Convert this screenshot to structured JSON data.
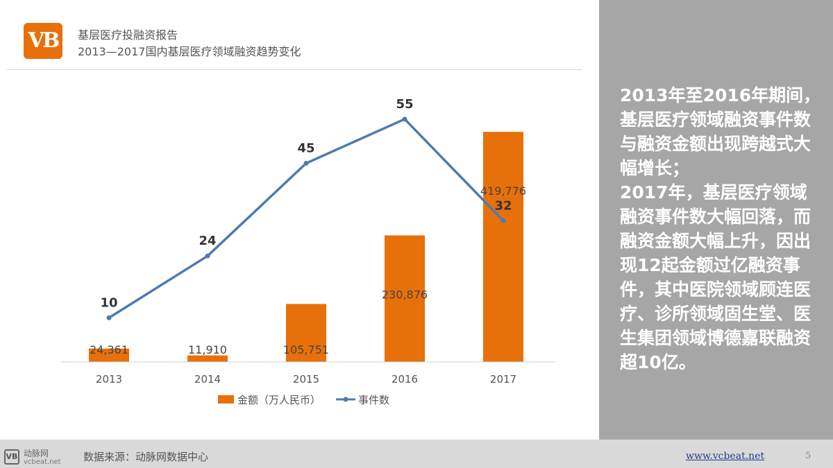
{
  "header": {
    "logo_text": "VB",
    "title": "基层医疗投融资报告",
    "subtitle": "2013—2017国内基层医疗领域融资趋势变化"
  },
  "chart_data": {
    "type": "bar",
    "categories": [
      "2013",
      "2014",
      "2015",
      "2016",
      "2017"
    ],
    "series": [
      {
        "name": "金额（万人民币）",
        "type": "bar",
        "color": "#e8700a",
        "values": [
          24361,
          11910,
          105751,
          230876,
          419776
        ],
        "labels": [
          "24,361",
          "11,910",
          "105,751",
          "230,876",
          "419,776"
        ]
      },
      {
        "name": "事件数",
        "type": "line",
        "color": "#4e7bb0",
        "values": [
          10,
          24,
          45,
          55,
          32
        ],
        "labels": [
          "10",
          "24",
          "45",
          "55",
          "32"
        ]
      }
    ],
    "bar_axis_max": 420000,
    "line_axis_max": 60,
    "grid": false,
    "legend_position": "bottom"
  },
  "side_panel": {
    "text": "2013年至2016年期间，\n基层医疗领域融资事件数与融资金额出现跨越式大幅增长；\n2017年，基层医疗领域融资事件数大幅回落，而融资金额大幅上升，因出现12起金额过亿融资事件，其中医院领域顾连医疗、诊所领域固生堂、医生集团领域博德嘉联融资超10亿。"
  },
  "footer": {
    "logo_text": "VB",
    "brand": "动脉网",
    "brand_url": "vcbeat.net",
    "source": "数据来源：动脉网数据中心",
    "url": "www.vcbeat.net",
    "page_number": "5"
  }
}
